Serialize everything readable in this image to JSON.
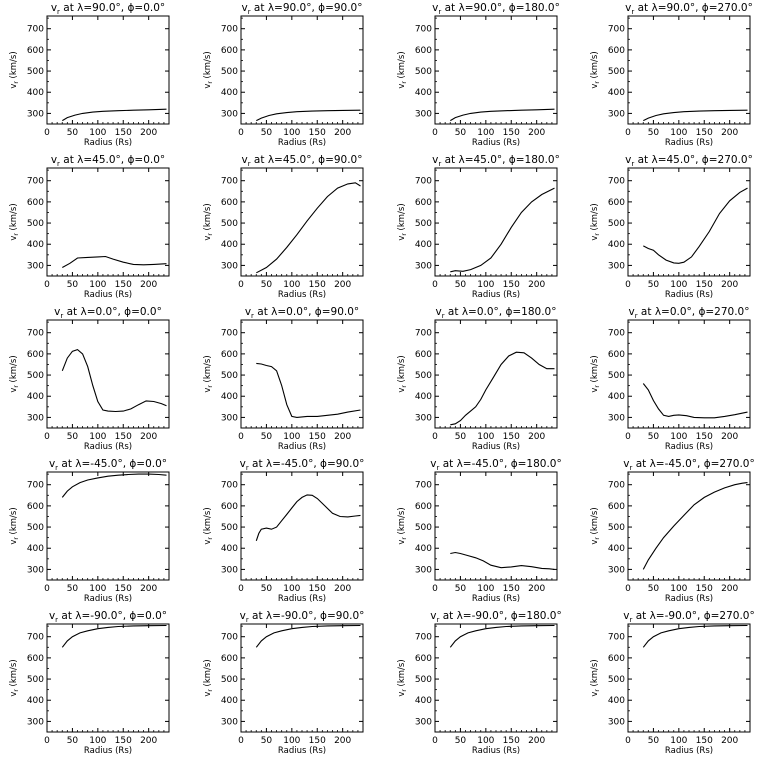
{
  "chart_data": {
    "type": "line",
    "xlabel": "Radius (Rs)",
    "ylabel": "v_r (km/s)",
    "xlim": [
      0,
      240
    ],
    "ylim": [
      250,
      760
    ],
    "xticks": [
      0,
      50,
      100,
      150,
      200
    ],
    "yticks": [
      300,
      400,
      500,
      600,
      700
    ],
    "grid": false,
    "title_template": "v_r at λ={lat}°, φ={lon}°",
    "panels": [
      {
        "title": "vr at λ=90.0°, φ=0.0°",
        "lat": "90.0",
        "lon": "0.0",
        "x": [
          30,
          40,
          55,
          70,
          90,
          110,
          140,
          170,
          200,
          235
        ],
        "y": [
          266,
          280,
          292,
          300,
          306,
          310,
          313,
          315,
          317,
          320
        ]
      },
      {
        "title": "vr at λ=90.0°, φ=90.0°",
        "lat": "90.0",
        "lon": "90.0",
        "x": [
          30,
          40,
          55,
          70,
          90,
          110,
          140,
          170,
          200,
          235
        ],
        "y": [
          266,
          278,
          290,
          298,
          304,
          308,
          311,
          313,
          314,
          315
        ]
      },
      {
        "title": "vr at λ=90.0°, φ=180.0°",
        "lat": "90.0",
        "lon": "180.0",
        "x": [
          30,
          40,
          55,
          70,
          90,
          110,
          140,
          170,
          200,
          235
        ],
        "y": [
          266,
          280,
          292,
          300,
          306,
          310,
          313,
          315,
          317,
          320
        ]
      },
      {
        "title": "vr at λ=90.0°, φ=270.0°",
        "lat": "90.0",
        "lon": "270.0",
        "x": [
          30,
          40,
          55,
          70,
          90,
          110,
          140,
          170,
          200,
          235
        ],
        "y": [
          266,
          278,
          290,
          298,
          304,
          308,
          311,
          313,
          314,
          315
        ]
      },
      {
        "title": "vr at λ=45.0°, φ=0.0°",
        "lat": "45.0",
        "lon": "0.0",
        "x": [
          30,
          45,
          60,
          80,
          100,
          115,
          130,
          150,
          170,
          190,
          210,
          235
        ],
        "y": [
          290,
          310,
          335,
          338,
          340,
          342,
          330,
          315,
          305,
          303,
          305,
          308
        ]
      },
      {
        "title": "vr at λ=45.0°, φ=90.0°",
        "lat": "45.0",
        "lon": "90.0",
        "x": [
          30,
          50,
          70,
          90,
          110,
          130,
          150,
          170,
          190,
          210,
          225,
          235
        ],
        "y": [
          265,
          290,
          330,
          385,
          445,
          510,
          570,
          625,
          665,
          685,
          690,
          675
        ]
      },
      {
        "title": "vr at λ=45.0°, φ=180.0°",
        "lat": "45.0",
        "lon": "180.0",
        "x": [
          30,
          40,
          55,
          70,
          90,
          110,
          130,
          150,
          170,
          190,
          210,
          235
        ],
        "y": [
          270,
          275,
          272,
          280,
          300,
          335,
          400,
          480,
          550,
          600,
          635,
          665
        ]
      },
      {
        "title": "vr at λ=45.0°, φ=270.0°",
        "lat": "45.0",
        "lon": "270.0",
        "x": [
          30,
          40,
          50,
          60,
          75,
          90,
          100,
          110,
          125,
          140,
          160,
          180,
          200,
          220,
          235
        ],
        "y": [
          392,
          380,
          372,
          350,
          325,
          312,
          310,
          315,
          340,
          390,
          460,
          545,
          605,
          645,
          665
        ]
      },
      {
        "title": "vr at λ=0.0°, φ=0.0°",
        "lat": "0.0",
        "lon": "0.0",
        "x": [
          30,
          40,
          50,
          60,
          70,
          80,
          90,
          100,
          110,
          120,
          135,
          150,
          165,
          180,
          195,
          210,
          225,
          235
        ],
        "y": [
          520,
          580,
          612,
          620,
          600,
          540,
          450,
          375,
          335,
          330,
          328,
          330,
          340,
          360,
          378,
          375,
          365,
          355
        ]
      },
      {
        "title": "vr at λ=0.0°, φ=90.0°",
        "lat": "0.0",
        "lon": "90.0",
        "x": [
          30,
          40,
          50,
          60,
          70,
          80,
          90,
          100,
          110,
          130,
          150,
          170,
          190,
          210,
          235
        ],
        "y": [
          555,
          552,
          545,
          540,
          520,
          450,
          360,
          305,
          300,
          305,
          305,
          310,
          315,
          325,
          335
        ]
      },
      {
        "title": "vr at λ=0.0°, φ=180.0°",
        "lat": "0.0",
        "lon": "180.0",
        "x": [
          30,
          40,
          50,
          60,
          70,
          80,
          90,
          100,
          115,
          130,
          145,
          160,
          175,
          190,
          205,
          220,
          235
        ],
        "y": [
          265,
          270,
          285,
          310,
          330,
          350,
          385,
          430,
          490,
          550,
          590,
          608,
          605,
          580,
          550,
          530,
          530
        ]
      },
      {
        "title": "vr at λ=0.0°, φ=270.0°",
        "lat": "0.0",
        "lon": "270.0",
        "x": [
          30,
          40,
          50,
          60,
          70,
          80,
          90,
          100,
          115,
          130,
          150,
          170,
          190,
          210,
          235
        ],
        "y": [
          460,
          430,
          380,
          340,
          310,
          305,
          310,
          312,
          308,
          300,
          298,
          298,
          305,
          313,
          325
        ]
      },
      {
        "title": "vr at λ=-45.0°, φ=0.0°",
        "lat": "-45.0",
        "lon": "0.0",
        "x": [
          30,
          40,
          50,
          65,
          80,
          100,
          120,
          140,
          160,
          180,
          200,
          220,
          235
        ],
        "y": [
          640,
          670,
          690,
          710,
          722,
          732,
          740,
          745,
          748,
          750,
          750,
          748,
          745
        ]
      },
      {
        "title": "vr at λ=-45.0°, φ=90.0°",
        "lat": "-45.0",
        "lon": "90.0",
        "x": [
          30,
          35,
          40,
          50,
          60,
          70,
          80,
          90,
          100,
          110,
          120,
          130,
          140,
          150,
          165,
          180,
          195,
          210,
          225,
          235
        ],
        "y": [
          435,
          470,
          490,
          495,
          490,
          500,
          530,
          560,
          590,
          620,
          640,
          652,
          650,
          635,
          600,
          565,
          550,
          548,
          552,
          555
        ]
      },
      {
        "title": "vr at λ=-45.0°, φ=180.0°",
        "lat": "-45.0",
        "lon": "180.0",
        "x": [
          30,
          40,
          50,
          65,
          80,
          95,
          110,
          130,
          150,
          170,
          190,
          210,
          225,
          235
        ],
        "y": [
          375,
          380,
          375,
          365,
          355,
          340,
          320,
          308,
          312,
          318,
          313,
          305,
          303,
          300
        ]
      },
      {
        "title": "vr at λ=-45.0°, φ=270.0°",
        "lat": "-45.0",
        "lon": "270.0",
        "x": [
          30,
          40,
          55,
          70,
          90,
          110,
          130,
          150,
          170,
          190,
          210,
          225,
          235
        ],
        "y": [
          300,
          345,
          400,
          450,
          505,
          555,
          605,
          640,
          665,
          685,
          700,
          707,
          710
        ]
      },
      {
        "title": "vr at λ=-90.0°, φ=0.0°",
        "lat": "-90.0",
        "lon": "0.0",
        "x": [
          30,
          40,
          50,
          65,
          80,
          100,
          120,
          140,
          170,
          200,
          235
        ],
        "y": [
          650,
          680,
          700,
          718,
          728,
          738,
          744,
          748,
          751,
          752,
          753
        ]
      },
      {
        "title": "vr at λ=-90.0°, φ=90.0°",
        "lat": "-90.0",
        "lon": "90.0",
        "x": [
          30,
          40,
          50,
          65,
          80,
          100,
          120,
          140,
          170,
          200,
          235
        ],
        "y": [
          650,
          680,
          700,
          718,
          728,
          738,
          744,
          748,
          751,
          752,
          753
        ]
      },
      {
        "title": "vr at λ=-90.0°, φ=180.0°",
        "lat": "-90.0",
        "lon": "180.0",
        "x": [
          30,
          40,
          50,
          65,
          80,
          100,
          120,
          140,
          170,
          200,
          235
        ],
        "y": [
          650,
          680,
          700,
          718,
          728,
          738,
          744,
          748,
          751,
          752,
          753
        ]
      },
      {
        "title": "vr at λ=-90.0°, φ=270.0°",
        "lat": "-90.0",
        "lon": "270.0",
        "x": [
          30,
          40,
          50,
          65,
          80,
          100,
          120,
          140,
          170,
          200,
          235
        ],
        "y": [
          650,
          680,
          700,
          718,
          728,
          738,
          744,
          748,
          751,
          752,
          753
        ]
      }
    ]
  },
  "colors": {
    "background": "#ffffff",
    "line": "#000000",
    "axes": "#000000"
  }
}
